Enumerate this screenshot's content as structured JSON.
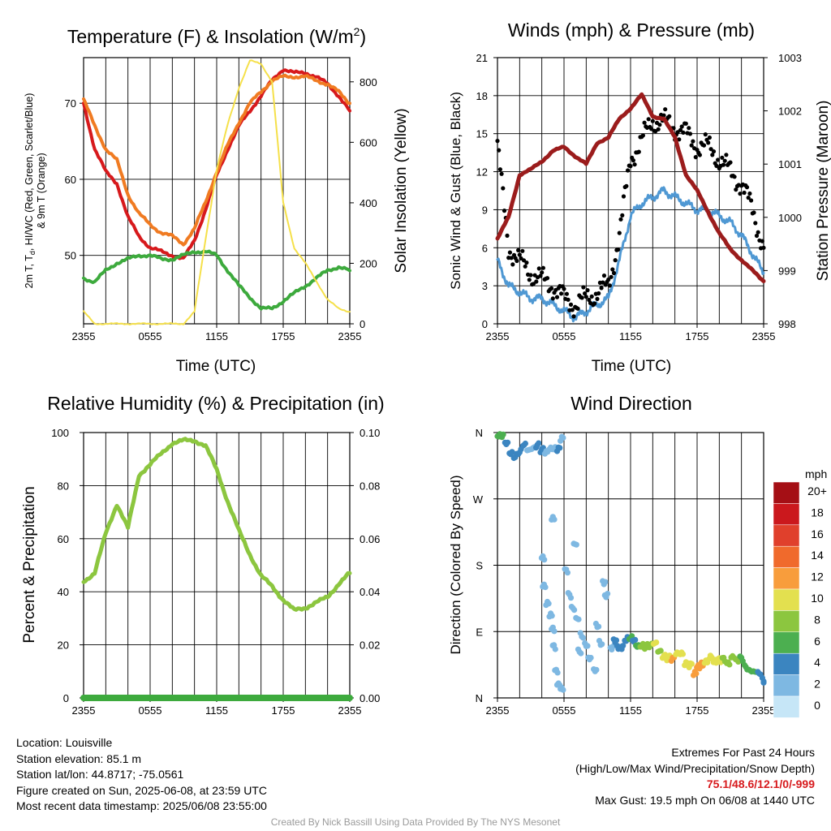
{
  "panels": {
    "temp": {
      "title_main": "Temperature (F) & Insolation (W/m",
      "title_sup": "2",
      "title_close": ")",
      "ylabel_line1": "2m T, T",
      "ylabel_sub": "d",
      "ylabel_line1_rest": ", HI/WC (Red, Green, Scarlet/Blue)",
      "ylabel_line2": "& 9m T (Orange)",
      "y2label": "Solar Insolation (Yellow)",
      "xlabel": "Time (UTC)"
    },
    "wind": {
      "title": "Winds (mph) & Pressure (mb)",
      "ylabel": "Sonic Wind & Gust (Blue, Black)",
      "y2label": "Station Pressure (Maroon)",
      "xlabel": "Time (UTC)"
    },
    "rh": {
      "title": "Relative Humidity (%) & Precipitation (in)",
      "ylabel": "Percent & Precipitation"
    },
    "dir": {
      "title": "Wind Direction",
      "ylabel": "Direction (Colored By Speed)",
      "legend_title": "mph"
    }
  },
  "chart_data": [
    {
      "type": "line",
      "title": "Temperature (F) & Insolation (W/m2)",
      "xlabel": "Time (UTC)",
      "ylabel": "2m T, Td, HI/WC (Red, Green, Scarlet/Blue) & 9m T (Orange)",
      "y2label": "Solar Insolation (Yellow)",
      "x_ticks": [
        "2355",
        "0555",
        "1155",
        "1755",
        "2355"
      ],
      "x_range_hours": [
        0,
        24
      ],
      "ylim": [
        41,
        76
      ],
      "y_ticks": [
        50,
        60,
        70
      ],
      "y2lim": [
        0,
        880
      ],
      "y2_ticks": [
        0,
        200,
        400,
        600,
        800
      ],
      "x_hours": [
        0,
        1,
        2,
        3,
        4,
        5,
        6,
        7,
        8,
        9,
        10,
        11,
        12,
        13,
        14,
        15,
        16,
        17,
        18,
        19,
        20,
        21,
        22,
        23,
        24
      ],
      "series": [
        {
          "name": "2m T",
          "color": "#d7191c",
          "axis": "left",
          "values": [
            70,
            64,
            61,
            59.5,
            55,
            52.5,
            51,
            50.5,
            50,
            49.5,
            52,
            56,
            60.5,
            64,
            67,
            69,
            71,
            73,
            74.5,
            74,
            74,
            73.5,
            72.5,
            71,
            69
          ]
        },
        {
          "name": "9m T",
          "color": "#f07b22",
          "axis": "left",
          "values": [
            70.5,
            67,
            64,
            62.5,
            58,
            55.5,
            54,
            53,
            52.5,
            51.5,
            53.5,
            57,
            61,
            64.5,
            67.5,
            70,
            71.5,
            73,
            73.5,
            73.5,
            73.5,
            73,
            72.5,
            71.5,
            70
          ]
        },
        {
          "name": "Td",
          "color": "#3daa3d",
          "axis": "left",
          "values": [
            47,
            46.5,
            48,
            49,
            49.5,
            50,
            50,
            49.5,
            49.5,
            50,
            50.5,
            50.5,
            50,
            48,
            46,
            44.5,
            43,
            43,
            44,
            45,
            46,
            47,
            48,
            48.5,
            48
          ]
        },
        {
          "name": "Solar Insolation",
          "color": "#f5e04a",
          "axis": "right",
          "values": [
            40,
            0,
            0,
            0,
            0,
            0,
            0,
            0,
            0,
            0,
            40,
            280,
            510,
            660,
            780,
            870,
            860,
            800,
            400,
            250,
            200,
            140,
            80,
            50,
            40
          ]
        }
      ]
    },
    {
      "type": "line",
      "title": "Winds (mph) & Pressure (mb)",
      "xlabel": "Time (UTC)",
      "ylabel": "Sonic Wind & Gust (Blue, Black)",
      "y2label": "Station Pressure (Maroon)",
      "x_ticks": [
        "2355",
        "0555",
        "1155",
        "1755",
        "2355"
      ],
      "x_range_hours": [
        0,
        24
      ],
      "ylim": [
        0,
        21
      ],
      "y_ticks": [
        0,
        3,
        6,
        9,
        12,
        15,
        18,
        21
      ],
      "y2lim": [
        998,
        1003
      ],
      "y2_ticks": [
        998,
        999,
        1000,
        1001,
        1002,
        1003
      ],
      "x_hours": [
        0,
        1,
        2,
        3,
        4,
        5,
        6,
        7,
        8,
        9,
        10,
        11,
        12,
        13,
        14,
        15,
        16,
        17,
        18,
        19,
        20,
        21,
        22,
        23,
        24
      ],
      "series": [
        {
          "name": "Sonic Wind",
          "color": "#4f98d3",
          "axis": "left",
          "values": [
            5,
            3,
            2.5,
            2,
            2,
            1.5,
            1,
            0.5,
            1,
            1.5,
            2,
            5,
            8.5,
            9.5,
            10,
            10.5,
            10,
            9.5,
            9,
            9,
            8.5,
            8,
            7,
            5.5,
            4
          ]
        },
        {
          "name": "Gust",
          "color": "#000000",
          "axis": "left",
          "values": [
            14,
            6,
            5,
            4,
            3.5,
            3,
            2,
            1.5,
            2,
            2.5,
            3,
            7,
            13,
            14.5,
            16,
            16,
            15.5,
            15,
            14,
            14,
            13,
            12,
            11,
            9,
            6
          ]
        },
        {
          "name": "Station Pressure",
          "color": "#9b1c1c",
          "axis": "right",
          "values": [
            999.6,
            1000.0,
            1000.8,
            1000.9,
            1001.05,
            1001.25,
            1001.32,
            1001.15,
            1001.0,
            1001.4,
            1001.5,
            1001.85,
            1002.05,
            1002.3,
            1001.9,
            1001.85,
            1001.5,
            1000.8,
            1000.5,
            1000.1,
            999.7,
            999.4,
            999.2,
            999.0,
            998.8
          ]
        }
      ]
    },
    {
      "type": "line",
      "title": "Relative Humidity (%) & Precipitation (in)",
      "ylabel": "Percent & Precipitation",
      "x_ticks": [
        "2355",
        "0555",
        "1155",
        "1755",
        "2355"
      ],
      "x_range_hours": [
        0,
        24
      ],
      "ylim": [
        0,
        100
      ],
      "y_ticks": [
        0,
        20,
        40,
        60,
        80,
        100
      ],
      "y2lim": [
        0,
        0.1
      ],
      "y2_ticks": [
        "0.00",
        "0.02",
        "0.04",
        "0.06",
        "0.08",
        "0.10"
      ],
      "x_hours": [
        0,
        1,
        2,
        3,
        4,
        5,
        6,
        7,
        8,
        9,
        10,
        11,
        12,
        13,
        14,
        15,
        16,
        17,
        18,
        19,
        20,
        21,
        22,
        23,
        24
      ],
      "series": [
        {
          "name": "Relative Humidity",
          "color": "#8cc63f",
          "axis": "left",
          "values": [
            44,
            47,
            62,
            73,
            64,
            84,
            88,
            92,
            96,
            97,
            97,
            95,
            86,
            74,
            63,
            54,
            46,
            42,
            37,
            33,
            34,
            36,
            38,
            43,
            47
          ]
        },
        {
          "name": "Precipitation",
          "color": "#3daa3d",
          "axis": "right",
          "values": [
            0,
            0,
            0,
            0,
            0,
            0,
            0,
            0,
            0,
            0,
            0,
            0,
            0,
            0,
            0,
            0,
            0,
            0,
            0,
            0,
            0,
            0,
            0,
            0,
            0
          ]
        }
      ]
    },
    {
      "type": "scatter",
      "title": "Wind Direction",
      "ylabel": "Direction (Colored By Speed)",
      "x_ticks": [
        "2355",
        "0555",
        "1155",
        "1755",
        "2355"
      ],
      "x_range_hours": [
        0,
        24
      ],
      "y_ticks": [
        "N",
        "E",
        "S",
        "W",
        "N"
      ],
      "ylim_degrees": [
        0,
        360
      ],
      "legend": {
        "title": "mph",
        "labels": [
          "20+",
          "18",
          "16",
          "14",
          "12",
          "10",
          "8",
          "6",
          "4",
          "2",
          "0"
        ],
        "colors": [
          "#a50f15",
          "#cb181d",
          "#e0402c",
          "#f06a2c",
          "#f89d3c",
          "#e3e04f",
          "#8cc63f",
          "#4caf50",
          "#3b85c0",
          "#7eb8e2",
          "#c6e6f7"
        ]
      },
      "points": [
        {
          "h": 0.1,
          "deg": 355,
          "mph": 6
        },
        {
          "h": 0.4,
          "deg": 352,
          "mph": 5
        },
        {
          "h": 0.8,
          "deg": 345,
          "mph": 4
        },
        {
          "h": 1.2,
          "deg": 335,
          "mph": 3
        },
        {
          "h": 1.6,
          "deg": 330,
          "mph": 3
        },
        {
          "h": 2.0,
          "deg": 332,
          "mph": 3
        },
        {
          "h": 2.4,
          "deg": 340,
          "mph": 3
        },
        {
          "h": 2.8,
          "deg": 336,
          "mph": 2
        },
        {
          "h": 3.2,
          "deg": 342,
          "mph": 2
        },
        {
          "h": 3.6,
          "deg": 345,
          "mph": 3
        },
        {
          "h": 4.0,
          "deg": 335,
          "mph": 3
        },
        {
          "h": 4.4,
          "deg": 330,
          "mph": 2
        },
        {
          "h": 4.8,
          "deg": 338,
          "mph": 2
        },
        {
          "h": 5.2,
          "deg": 342,
          "mph": 2
        },
        {
          "h": 5.5,
          "deg": 340,
          "mph": 3
        },
        {
          "h": 5.8,
          "deg": 350,
          "mph": 1
        },
        {
          "h": 5.0,
          "deg": 240,
          "mph": 1
        },
        {
          "h": 4.1,
          "deg": 190,
          "mph": 1
        },
        {
          "h": 4.2,
          "deg": 155,
          "mph": 2
        },
        {
          "h": 4.5,
          "deg": 130,
          "mph": 1
        },
        {
          "h": 4.8,
          "deg": 110,
          "mph": 1
        },
        {
          "h": 5.0,
          "deg": 90,
          "mph": 1
        },
        {
          "h": 5.1,
          "deg": 70,
          "mph": 1
        },
        {
          "h": 5.3,
          "deg": 40,
          "mph": 1
        },
        {
          "h": 5.5,
          "deg": 20,
          "mph": 1
        },
        {
          "h": 5.8,
          "deg": 10,
          "mph": 1
        },
        {
          "h": 6.2,
          "deg": 170,
          "mph": 2
        },
        {
          "h": 6.5,
          "deg": 140,
          "mph": 2
        },
        {
          "h": 6.8,
          "deg": 125,
          "mph": 1
        },
        {
          "h": 7.0,
          "deg": 210,
          "mph": 1
        },
        {
          "h": 7.2,
          "deg": 105,
          "mph": 1
        },
        {
          "h": 7.4,
          "deg": 60,
          "mph": 1
        },
        {
          "h": 7.6,
          "deg": 85,
          "mph": 2
        },
        {
          "h": 8.0,
          "deg": 75,
          "mph": 2
        },
        {
          "h": 8.3,
          "deg": 55,
          "mph": 2
        },
        {
          "h": 8.8,
          "deg": 35,
          "mph": 1
        },
        {
          "h": 9.0,
          "deg": 95,
          "mph": 1
        },
        {
          "h": 9.3,
          "deg": 75,
          "mph": 2
        },
        {
          "h": 9.6,
          "deg": 160,
          "mph": 1
        },
        {
          "h": 9.8,
          "deg": 140,
          "mph": 2
        },
        {
          "h": 10.3,
          "deg": 65,
          "mph": 2
        },
        {
          "h": 10.6,
          "deg": 75,
          "mph": 3
        },
        {
          "h": 10.9,
          "deg": 70,
          "mph": 4
        },
        {
          "h": 11.2,
          "deg": 72,
          "mph": 4
        },
        {
          "h": 11.6,
          "deg": 80,
          "mph": 4
        },
        {
          "h": 12.0,
          "deg": 78,
          "mph": 5
        },
        {
          "h": 12.3,
          "deg": 75,
          "mph": 4
        },
        {
          "h": 12.6,
          "deg": 72,
          "mph": 6
        },
        {
          "h": 13.0,
          "deg": 74,
          "mph": 7
        },
        {
          "h": 13.4,
          "deg": 70,
          "mph": 8
        },
        {
          "h": 13.8,
          "deg": 68,
          "mph": 8
        },
        {
          "h": 14.2,
          "deg": 72,
          "mph": 9
        },
        {
          "h": 14.6,
          "deg": 65,
          "mph": 8
        },
        {
          "h": 15.0,
          "deg": 60,
          "mph": 9
        },
        {
          "h": 15.4,
          "deg": 55,
          "mph": 10
        },
        {
          "h": 15.8,
          "deg": 50,
          "mph": 11
        },
        {
          "h": 16.2,
          "deg": 58,
          "mph": 10
        },
        {
          "h": 16.6,
          "deg": 62,
          "mph": 9
        },
        {
          "h": 17.0,
          "deg": 50,
          "mph": 10
        },
        {
          "h": 17.4,
          "deg": 45,
          "mph": 10
        },
        {
          "h": 17.8,
          "deg": 30,
          "mph": 12
        },
        {
          "h": 18.1,
          "deg": 40,
          "mph": 12
        },
        {
          "h": 18.4,
          "deg": 48,
          "mph": 11
        },
        {
          "h": 18.8,
          "deg": 52,
          "mph": 10
        },
        {
          "h": 19.2,
          "deg": 55,
          "mph": 10
        },
        {
          "h": 19.6,
          "deg": 46,
          "mph": 10
        },
        {
          "h": 20.0,
          "deg": 50,
          "mph": 9
        },
        {
          "h": 20.4,
          "deg": 55,
          "mph": 8
        },
        {
          "h": 20.8,
          "deg": 50,
          "mph": 8
        },
        {
          "h": 21.2,
          "deg": 55,
          "mph": 7
        },
        {
          "h": 21.6,
          "deg": 48,
          "mph": 7
        },
        {
          "h": 22.0,
          "deg": 52,
          "mph": 6
        },
        {
          "h": 22.4,
          "deg": 44,
          "mph": 6
        },
        {
          "h": 22.8,
          "deg": 40,
          "mph": 5
        },
        {
          "h": 23.2,
          "deg": 35,
          "mph": 5
        },
        {
          "h": 23.6,
          "deg": 30,
          "mph": 4
        },
        {
          "h": 24.0,
          "deg": 22,
          "mph": 4
        }
      ]
    }
  ],
  "info": {
    "location": "Location: Louisville",
    "elevation": "Station elevation: 85.1 m",
    "latlon": "Station lat/lon: 44.8717; -75.0561",
    "created": "Figure created on Sun, 2025-06-08, at 23:59 UTC",
    "recent": "Most recent data timestamp: 2025/06/08 23:55:00",
    "extremes_title": "Extremes For Past 24 Hours",
    "extremes_sub": "(High/Low/Max Wind/Precipitation/Snow Depth)",
    "extremes_values": "75.1/48.6/12.1/0/-999",
    "max_gust": "Max Gust: 19.5 mph On 06/08 at 1440 UTC",
    "credit": "Created By Nick Bassill Using Data Provided By The NYS Mesonet"
  },
  "colors": {
    "red": "#d7191c",
    "grid": "#000000"
  }
}
